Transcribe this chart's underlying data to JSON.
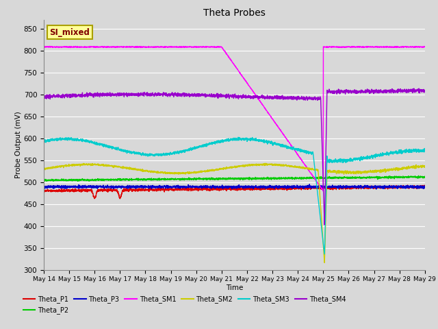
{
  "title": "Theta Probes",
  "xlabel": "Time",
  "ylabel": "Probe Output (mV)",
  "ylim": [
    300,
    870
  ],
  "yticks": [
    300,
    350,
    400,
    450,
    500,
    550,
    600,
    650,
    700,
    750,
    800,
    850
  ],
  "x_tick_labels": [
    "May 14",
    "May 15",
    "May 16",
    "May 17",
    "May 18",
    "May 19",
    "May 20",
    "May 21",
    "May 22",
    "May 23",
    "May 24",
    "May 25",
    "May 26",
    "May 27",
    "May 28",
    "May 29"
  ],
  "annotation_text": "SI_mixed",
  "annotation_color": "#800000",
  "annotation_bg": "#ffff99",
  "annotation_border": "#aaa000",
  "colors": {
    "Theta_P1": "#dd0000",
    "Theta_P2": "#00cc00",
    "Theta_P3": "#0000cc",
    "Theta_SM1": "#ff00ff",
    "Theta_SM2": "#cccc00",
    "Theta_SM3": "#00cccc",
    "Theta_SM4": "#9900cc"
  },
  "bg_color": "#d8d8d8",
  "plot_bg_color": "#d8d8d8",
  "grid_color": "#ffffff"
}
